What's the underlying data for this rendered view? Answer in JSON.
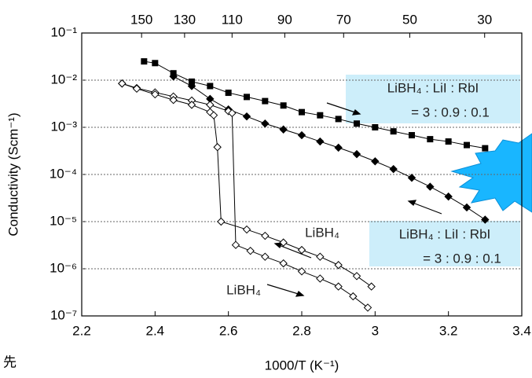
{
  "chart_data": {
    "type": "line",
    "x_label": "1000/T (K⁻¹)",
    "y_label": "Conductivity (Scm⁻¹)",
    "side_text": "先",
    "log_y": true,
    "grid": true,
    "xlim": [
      2.2,
      3.4
    ],
    "xticks": [
      2.2,
      2.4,
      2.6,
      2.8,
      3.0,
      3.2,
      3.4
    ],
    "x2ticks": [
      150,
      130,
      110,
      90,
      70,
      50,
      30
    ],
    "ylim": [
      1e-07,
      0.1
    ],
    "yticks": [
      {
        "value": 0.1,
        "label": "10⁻¹"
      },
      {
        "value": 0.01,
        "label": "10⁻²"
      },
      {
        "value": 0.001,
        "label": "10⁻³"
      },
      {
        "value": 0.0001,
        "label": "10⁻⁴"
      },
      {
        "value": 1e-05,
        "label": "10⁻⁵"
      },
      {
        "value": 1e-06,
        "label": "10⁻⁶"
      },
      {
        "value": 1e-07,
        "label": "10⁻⁷"
      }
    ],
    "series": [
      {
        "marker": "square",
        "color": "#000000",
        "x": [
          2.37,
          2.4,
          2.45,
          2.5,
          2.55,
          2.6,
          2.65,
          2.7,
          2.75,
          2.8,
          2.85,
          2.9,
          2.95,
          3.0,
          3.05,
          3.1,
          3.15,
          3.2,
          3.25,
          3.3
        ],
        "values": [
          0.025,
          0.023,
          0.014,
          0.0093,
          0.0075,
          0.0054,
          0.0044,
          0.0036,
          0.0029,
          0.0021,
          0.0018,
          0.0015,
          0.0012,
          0.001,
          0.00082,
          0.00068,
          0.00056,
          0.0005,
          0.00042,
          0.00036
        ]
      },
      {
        "marker": "diamond",
        "color": "#000000",
        "x": [
          2.45,
          2.5,
          2.55,
          2.6,
          2.65,
          2.7,
          2.75,
          2.8,
          2.85,
          2.9,
          2.95,
          3.0,
          3.05,
          3.1,
          3.15,
          3.2,
          3.25,
          3.3
        ],
        "values": [
          0.012,
          0.0075,
          0.004,
          0.0024,
          0.0017,
          0.0012,
          0.0009,
          0.00068,
          0.0005,
          0.00037,
          0.00027,
          0.00019,
          0.00013,
          8.5e-05,
          5.5e-05,
          3.4e-05,
          2e-05,
          1.1e-05
        ]
      },
      {
        "marker": "diamond-open",
        "color": "#000000",
        "x": [
          2.31,
          2.35,
          2.4,
          2.45,
          2.5,
          2.55,
          2.6,
          2.61,
          2.62,
          2.66,
          2.7,
          2.75,
          2.8,
          2.85,
          2.9,
          2.94,
          2.98
        ],
        "values": [
          0.0085,
          0.0068,
          0.0055,
          0.0045,
          0.0037,
          0.003,
          0.0022,
          0.002,
          3.2e-06,
          2.4e-06,
          1.8e-06,
          1.3e-06,
          8.8e-07,
          6.2e-07,
          4.2e-07,
          2.6e-07,
          1.5e-07
        ]
      },
      {
        "marker": "diamond-open",
        "color": "#000000",
        "x": [
          2.31,
          2.35,
          2.4,
          2.45,
          2.5,
          2.55,
          2.56,
          2.57,
          2.58,
          2.65,
          2.7,
          2.75,
          2.8,
          2.85,
          2.9,
          2.95,
          2.99
        ],
        "values": [
          0.0085,
          0.0066,
          0.005,
          0.0038,
          0.003,
          0.0021,
          0.0018,
          0.00038,
          1e-05,
          6.8e-06,
          5e-06,
          3.6e-06,
          2.5e-06,
          1.8e-06,
          1.2e-06,
          7e-07,
          4.2e-07
        ]
      }
    ],
    "annotations": [
      {
        "lines": [
          "LiBH₄ : LiI : RbI",
          "= 3 : 0.9 : 0.1"
        ]
      },
      {
        "lines": [
          "LiBH₄ : LiI : RbI",
          "= 3 : 0.9 : 0.1"
        ]
      },
      {
        "lines": [
          "LiBH₄"
        ]
      },
      {
        "lines": [
          "LiBH₄"
        ]
      }
    ]
  }
}
